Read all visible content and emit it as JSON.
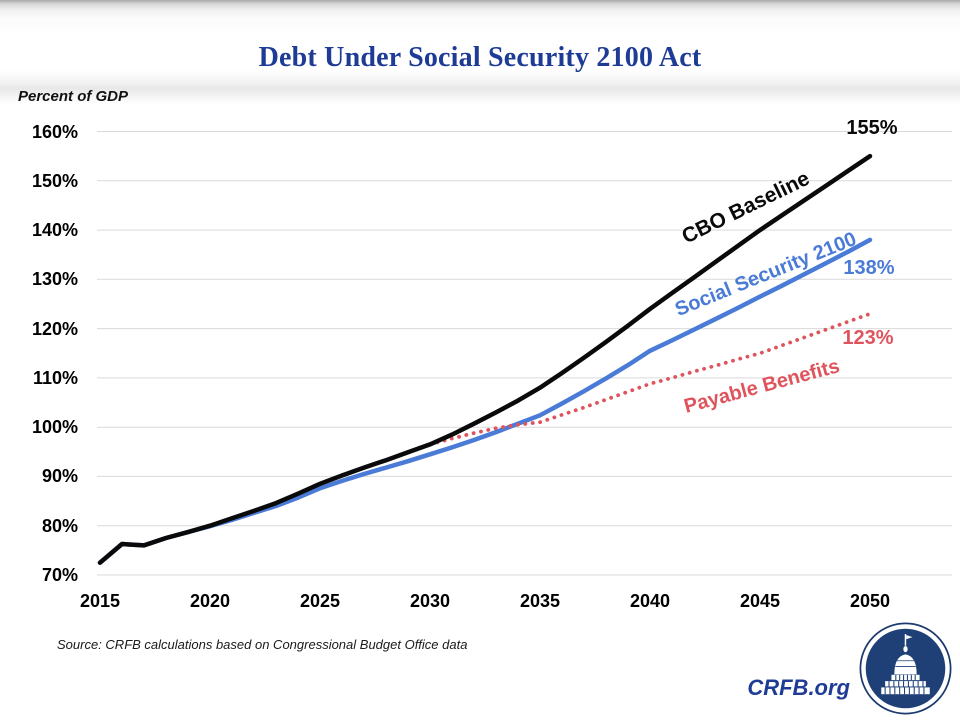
{
  "page": {
    "title": "Debt Under Social Security 2100 Act",
    "y_axis_unit_label": "Percent of GDP",
    "source_note": "Source: CRFB calculations based on Congressional Budget Office data",
    "brand": "CRFB.org",
    "colors": {
      "title_blue": "#1e3c96",
      "brand_blue": "#1e3c96",
      "gridline": "#d9d9d9",
      "baseline_black": "#0a0a0a",
      "ss2100_blue": "#4a7bd6",
      "payable_red": "#df545c",
      "logo_navy": "#1f4077"
    }
  },
  "chart_data": {
    "type": "line",
    "title": "Debt Under Social Security 2100 Act",
    "ylabel": "Percent of GDP",
    "xlabel": "",
    "xlim": [
      2015,
      2050
    ],
    "ylim": [
      70,
      160
    ],
    "grid": "horizontal",
    "legend_position": "inline-rotated-labels",
    "x_ticks": [
      "2015",
      "2020",
      "2025",
      "2030",
      "2035",
      "2040",
      "2045",
      "2050"
    ],
    "y_ticks": [
      "160%",
      "150%",
      "140%",
      "130%",
      "120%",
      "110%",
      "100%",
      "90%",
      "80%",
      "70%"
    ],
    "series": [
      {
        "name": "CBO Baseline",
        "style": "solid",
        "color": "#0a0a0a",
        "z": 3,
        "x_start": 2015,
        "values": [
          72.5,
          76.3,
          76.0,
          77.5,
          78.7,
          80.0,
          81.5,
          83.0,
          84.6,
          86.5,
          88.5,
          90.2,
          91.8,
          93.3,
          94.9,
          96.5,
          98.5,
          100.7,
          103.0,
          105.4,
          108.0,
          111.0,
          114.1,
          117.3,
          120.6,
          124.0,
          127.2,
          130.4,
          133.6,
          136.8,
          140.0,
          143.0,
          146.0,
          149.0,
          152.0,
          155.0
        ],
        "end_value_2050": "155%",
        "line_label": {
          "x": 746,
          "y": 208,
          "angle": -26,
          "size": 21
        },
        "end_label": {
          "x": 872,
          "y": 117
        }
      },
      {
        "name": "Social Security 2100",
        "style": "solid",
        "color": "#4a7bd6",
        "z": 1,
        "x_start": 2015,
        "values": [
          72.5,
          76.3,
          76.0,
          77.5,
          78.7,
          79.9,
          81.2,
          82.6,
          84.0,
          85.7,
          87.6,
          89.1,
          90.5,
          91.8,
          93.1,
          94.5,
          95.9,
          97.4,
          99.0,
          100.7,
          102.4,
          104.8,
          107.3,
          109.9,
          112.6,
          115.5,
          117.6,
          119.8,
          122.0,
          124.2,
          126.5,
          128.7,
          131.0,
          133.3,
          135.6,
          138.0
        ],
        "end_value_2050": "138%",
        "line_label": {
          "x": 766,
          "y": 275,
          "angle": -22,
          "size": 20
        },
        "end_label": {
          "x": 869,
          "y": 257
        }
      },
      {
        "name": "Payable Benefits",
        "style": "dotted",
        "color": "#df545c",
        "z": 2,
        "x_start": 2030,
        "values": [
          96.5,
          97.7,
          98.8,
          99.8,
          100.5,
          101.0,
          102.5,
          104.0,
          105.6,
          107.2,
          108.8,
          110.0,
          111.3,
          112.5,
          113.8,
          115.0,
          116.6,
          118.2,
          119.8,
          121.4,
          123.0
        ],
        "end_value_2050": "123%",
        "line_label": {
          "x": 762,
          "y": 387,
          "angle": -15,
          "size": 20
        },
        "end_label": {
          "x": 868,
          "y": 327
        }
      }
    ]
  }
}
